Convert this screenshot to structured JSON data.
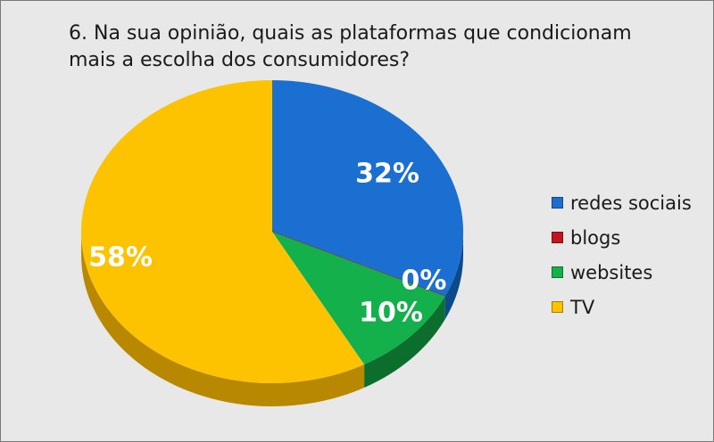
{
  "chart_data": {
    "type": "pie",
    "title": "6. Na sua opinião, quais as plataformas que condicionam mais a escolha dos consumidores?",
    "categories": [
      "redes sociais",
      "blogs",
      "websites",
      "TV"
    ],
    "values": [
      32,
      0,
      10,
      58
    ],
    "data_labels": [
      "32%",
      "0%",
      "10%",
      "58%"
    ],
    "colors": [
      "#1a6fd0",
      "#c0161d",
      "#14b04c",
      "#fdc200"
    ],
    "side_colors": [
      "#0d4a8c",
      "#7a0c10",
      "#0c6e2d",
      "#b88800"
    ],
    "legend_position": "right",
    "style": "3d"
  }
}
